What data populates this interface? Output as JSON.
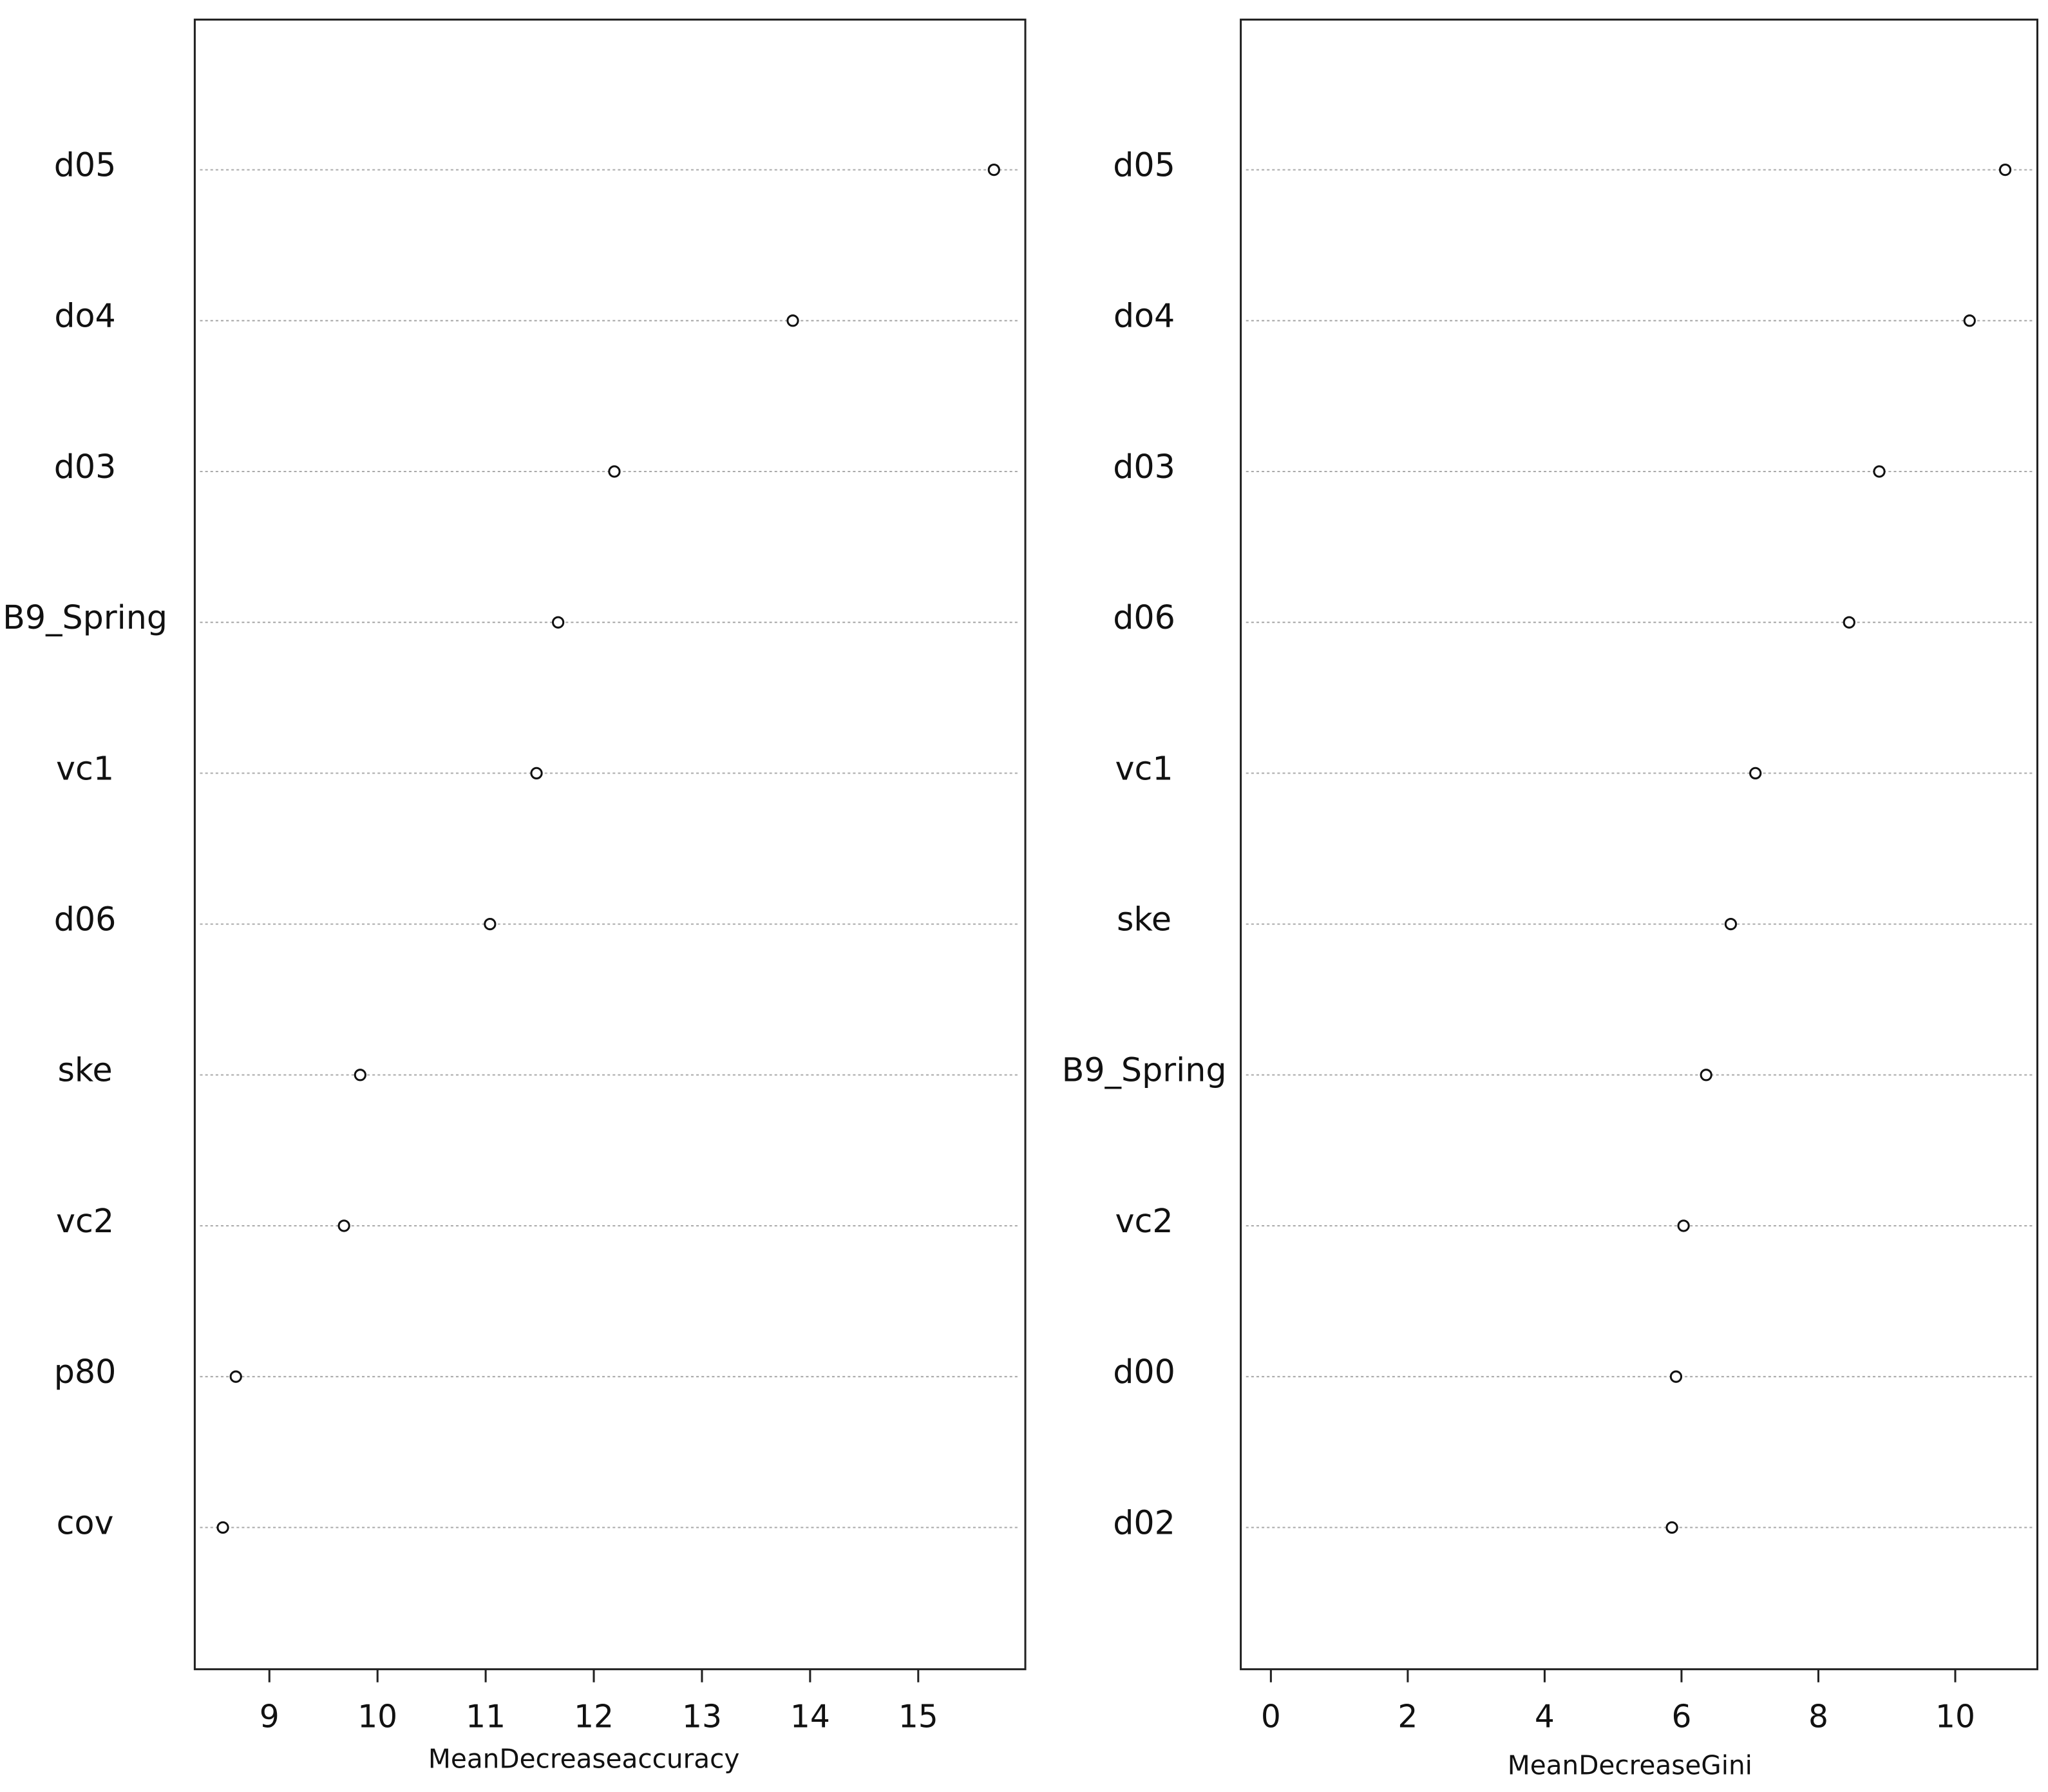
{
  "chart_data": [
    {
      "type": "dot",
      "xlabel": "MeanDecreaseaccuracy",
      "categories": [
        "d05",
        "do4",
        "d03",
        "B9_Spring",
        "vc1",
        "d06",
        "ske",
        "vc2",
        "p80",
        "cov"
      ],
      "values": [
        15.7,
        13.84,
        12.19,
        11.67,
        11.47,
        11.04,
        9.84,
        9.69,
        8.69,
        8.57
      ],
      "xlim": [
        8.31,
        15.99
      ],
      "xticks": [
        9,
        10,
        11,
        12,
        13,
        14,
        15
      ],
      "grid": true
    },
    {
      "type": "dot",
      "xlabel": "MeanDecreaseGini",
      "categories": [
        "d05",
        "do4",
        "d03",
        "d06",
        "vc1",
        "ske",
        "B9_Spring",
        "vc2",
        "d00",
        "d02"
      ],
      "values": [
        10.73,
        10.21,
        8.89,
        8.45,
        7.08,
        6.72,
        6.36,
        6.03,
        5.92,
        5.86
      ],
      "xlim": [
        -0.44,
        11.2
      ],
      "xticks": [
        0,
        2,
        4,
        6,
        8,
        10
      ],
      "grid": true
    }
  ]
}
